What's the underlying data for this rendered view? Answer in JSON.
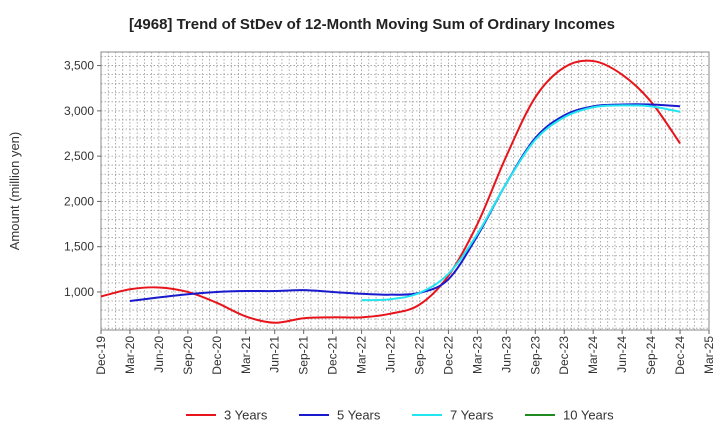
{
  "chart_data": {
    "type": "line",
    "title": "[4968]  Trend of StDev of 12-Month Moving Sum of Ordinary Incomes",
    "ylabel": "Amount (million yen)",
    "xlabel": "",
    "ylim": [
      580,
      3650
    ],
    "yticks": [
      1000,
      1500,
      2000,
      2500,
      3000,
      3500
    ],
    "ytick_labels": [
      "1,000",
      "1,500",
      "2,000",
      "2,500",
      "3,000",
      "3,500"
    ],
    "categories": [
      "Dec-19",
      "Mar-20",
      "Jun-20",
      "Sep-20",
      "Dec-20",
      "Mar-21",
      "Jun-21",
      "Sep-21",
      "Dec-21",
      "Mar-22",
      "Jun-22",
      "Sep-22",
      "Dec-22",
      "Mar-23",
      "Jun-23",
      "Sep-23",
      "Dec-23",
      "Mar-24",
      "Jun-24",
      "Sep-24",
      "Dec-24",
      "Mar-25"
    ],
    "grid": true,
    "legend_position": "bottom",
    "series": [
      {
        "name": "3 Years",
        "color": "#e8141b",
        "values": [
          950,
          1030,
          1050,
          1000,
          880,
          730,
          660,
          710,
          720,
          720,
          760,
          860,
          1180,
          1750,
          2500,
          3150,
          3480,
          3550,
          3400,
          3100,
          2640,
          null
        ]
      },
      {
        "name": "5 Years",
        "color": "#1a1acd",
        "values": [
          null,
          900,
          940,
          975,
          1000,
          1010,
          1010,
          1020,
          1000,
          980,
          970,
          990,
          1140,
          1620,
          2200,
          2700,
          2950,
          3050,
          3070,
          3070,
          3050,
          null
        ]
      },
      {
        "name": "7 Years",
        "color": "#22e5f0",
        "values": [
          null,
          null,
          null,
          null,
          null,
          null,
          null,
          null,
          null,
          910,
          920,
          990,
          1200,
          1640,
          2200,
          2680,
          2930,
          3040,
          3060,
          3050,
          2990,
          null
        ]
      },
      {
        "name": "10 Years",
        "color": "#1f8a1f",
        "values": [
          null,
          null,
          null,
          null,
          null,
          null,
          null,
          null,
          null,
          null,
          null,
          null,
          null,
          null,
          null,
          null,
          null,
          null,
          null,
          null,
          null,
          null
        ]
      }
    ]
  }
}
